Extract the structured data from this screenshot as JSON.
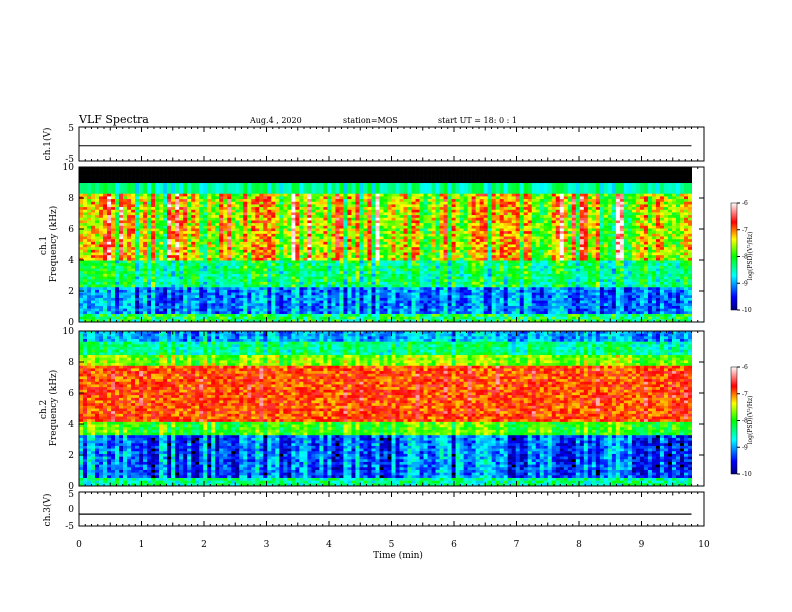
{
  "header": {
    "title": "VLF Spectra",
    "date": "Aug.4 , 2020",
    "station": "station=MOS",
    "start": "start UT = 18: 0 : 1"
  },
  "chart_data": [
    {
      "type": "line",
      "ylabel": "ch.1(V)",
      "xlim": [
        0,
        10
      ],
      "ylim": [
        -5,
        5
      ],
      "yticks": [
        "5",
        "-5"
      ],
      "series": [
        {
          "values": [
            [
              0,
              -0.5
            ],
            [
              9.8,
              -0.5
            ]
          ]
        }
      ]
    },
    {
      "type": "heatmap",
      "ylabel": "ch.1\nFrequency (kHz)",
      "xlim": [
        0,
        10
      ],
      "ylim": [
        0,
        10
      ],
      "yticks": [
        "0",
        "2",
        "4",
        "6",
        "8",
        "10"
      ],
      "colorbar": {
        "label": "log(PSD)(V²/Hz)",
        "range": [
          -10,
          -6
        ],
        "ticks": [
          "-6",
          "-7",
          "-8",
          "-9",
          "-10"
        ]
      }
    },
    {
      "type": "heatmap",
      "ylabel": "ch.2\nFrequency (kHz)",
      "xlim": [
        0,
        10
      ],
      "ylim": [
        0,
        10
      ],
      "yticks": [
        "0",
        "2",
        "4",
        "6",
        "8",
        "10"
      ],
      "colorbar": {
        "label": "log(PSD)(V²/Hz)",
        "range": [
          -10,
          -6
        ],
        "ticks": [
          "-6",
          "-7",
          "-8",
          "-9",
          "-10"
        ]
      }
    },
    {
      "type": "line",
      "ylabel": "ch.3(V)",
      "xlim": [
        0,
        10
      ],
      "ylim": [
        -5,
        5
      ],
      "yticks": [
        "5",
        "0",
        "-5"
      ],
      "series": [
        {
          "values": [
            [
              0,
              -1.5
            ],
            [
              9.8,
              -1.5
            ]
          ]
        }
      ]
    }
  ],
  "xaxis": {
    "label": "Time (min)",
    "ticks": [
      "0",
      "1",
      "2",
      "3",
      "4",
      "5",
      "6",
      "7",
      "8",
      "9",
      "10"
    ]
  },
  "colors": {
    "colormap": [
      "#000080",
      "#0000ff",
      "#00ffff",
      "#00ff00",
      "#ffff00",
      "#ff0000",
      "#ffffff"
    ]
  }
}
